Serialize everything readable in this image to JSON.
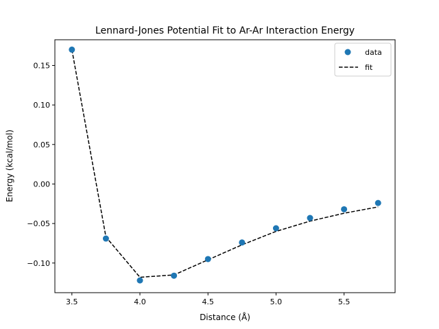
{
  "chart_data": {
    "type": "scatter",
    "title": "Lennard-Jones Potential Fit to Ar-Ar Interaction Energy",
    "xlabel": "Distance (Å)",
    "ylabel": "Energy (kcal/mol)",
    "xlim": [
      3.375,
      5.875
    ],
    "ylim": [
      -0.1375,
      0.1825
    ],
    "xticks": [
      3.5,
      4.0,
      4.5,
      5.0,
      5.5
    ],
    "xtick_labels": [
      "3.5",
      "4.0",
      "4.5",
      "5.0",
      "5.5"
    ],
    "yticks": [
      -0.1,
      -0.05,
      0.0,
      0.05,
      0.1,
      0.15
    ],
    "ytick_labels": [
      "−0.10",
      "−0.05",
      "0.00",
      "0.05",
      "0.10",
      "0.15"
    ],
    "grid": false,
    "legend_position": "top-right",
    "series": [
      {
        "name": "data",
        "kind": "points",
        "color": "#1f77b4",
        "x": [
          3.5,
          3.75,
          4.0,
          4.25,
          4.5,
          4.75,
          5.0,
          5.25,
          5.5,
          5.75
        ],
        "y": [
          0.17,
          -0.069,
          -0.122,
          -0.116,
          -0.095,
          -0.074,
          -0.056,
          -0.043,
          -0.032,
          -0.024
        ]
      },
      {
        "name": "fit",
        "kind": "dashed-line",
        "color": "#000000",
        "x": [
          3.5,
          3.75,
          4.0,
          4.25,
          4.5,
          4.75,
          5.0,
          5.25,
          5.5,
          5.75
        ],
        "y": [
          0.17,
          -0.067,
          -0.118,
          -0.115,
          -0.096,
          -0.077,
          -0.06,
          -0.047,
          -0.037,
          -0.029
        ]
      }
    ]
  }
}
